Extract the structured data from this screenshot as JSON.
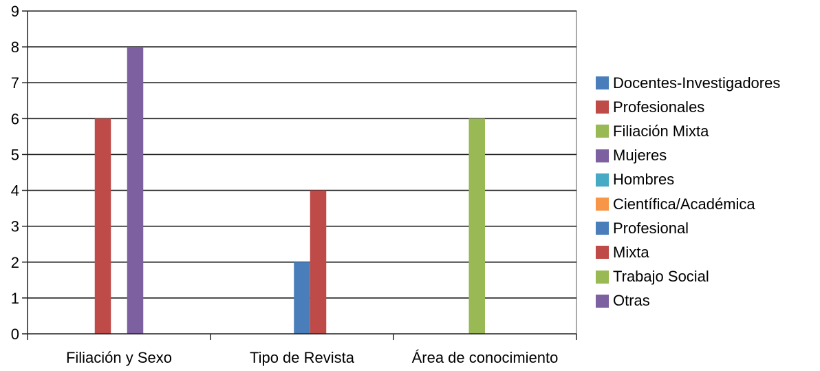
{
  "chart_data": {
    "type": "bar",
    "categories": [
      "Filiación y Sexo",
      "Tipo de Revista",
      "Área de conocimiento"
    ],
    "ylim": [
      0,
      9
    ],
    "yticks": [
      0,
      1,
      2,
      3,
      4,
      5,
      6,
      7,
      8,
      9
    ],
    "grid": true,
    "legend_position": "right",
    "series": [
      {
        "name": "Docentes-Investigadores",
        "color": "#4a7ebb",
        "values": [
          0,
          null,
          null
        ]
      },
      {
        "name": "Profesionales",
        "color": "#be4b48",
        "values": [
          6,
          null,
          null
        ]
      },
      {
        "name": "Filiación Mixta",
        "color": "#98b954",
        "values": [
          0,
          null,
          null
        ]
      },
      {
        "name": "Mujeres",
        "color": "#7d60a0",
        "values": [
          8,
          null,
          null
        ]
      },
      {
        "name": "Hombres",
        "color": "#46aac5",
        "values": [
          0,
          null,
          null
        ]
      },
      {
        "name": "Científica/Académica",
        "color": "#f79646",
        "values": [
          null,
          0,
          null
        ]
      },
      {
        "name": "Profesional",
        "color": "#4a7ebb",
        "values": [
          null,
          2,
          null
        ]
      },
      {
        "name": "Mixta",
        "color": "#be4b48",
        "values": [
          null,
          4,
          null
        ]
      },
      {
        "name": "Trabajo Social",
        "color": "#98b954",
        "values": [
          null,
          null,
          6
        ]
      },
      {
        "name": "Otras",
        "color": "#7d60a0",
        "values": [
          null,
          null,
          0
        ]
      }
    ]
  }
}
